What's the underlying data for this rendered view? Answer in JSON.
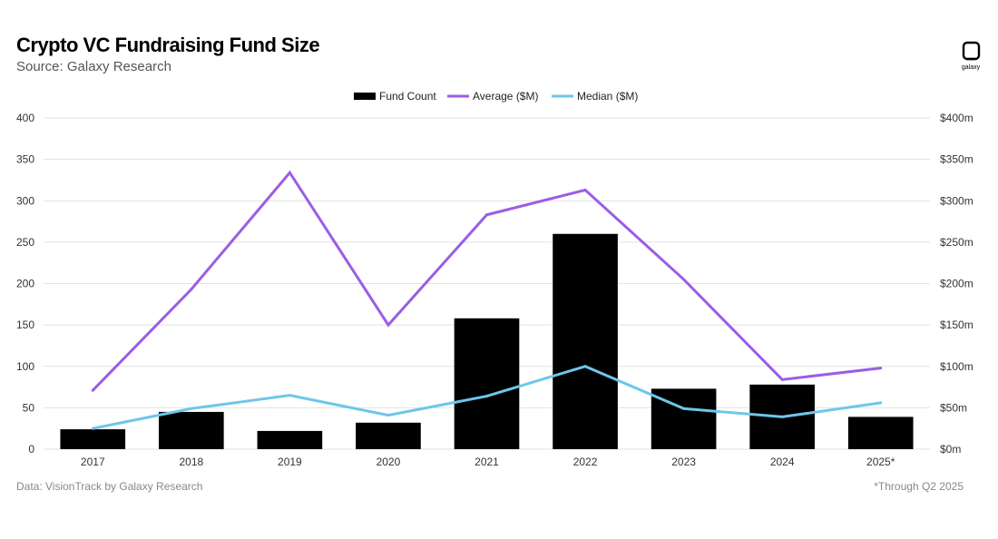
{
  "header": {
    "title": "Crypto VC Fundraising Fund Size",
    "subtitle": "Source: Galaxy Research",
    "logo_text": "galaxy"
  },
  "footer": {
    "left": "Data: VisionTrack by Galaxy Research",
    "right": "*Through Q2 2025"
  },
  "colors": {
    "bars": "#000000",
    "average": "#9b5de5",
    "median": "#6ec6ea",
    "grid": "#e2e2e2"
  },
  "chart_data": {
    "type": "bar",
    "title": "Crypto VC Fundraising Fund Size",
    "categories": [
      "2017",
      "2018",
      "2019",
      "2020",
      "2021",
      "2022",
      "2023",
      "2024",
      "2025*"
    ],
    "series": [
      {
        "name": "Fund Count",
        "type": "bar",
        "axis": "left",
        "values": [
          24,
          45,
          22,
          32,
          158,
          260,
          73,
          78,
          39
        ]
      },
      {
        "name": "Average ($M)",
        "type": "line",
        "axis": "right",
        "values": [
          71,
          193,
          334,
          150,
          283,
          313,
          205,
          84,
          98
        ]
      },
      {
        "name": "Median ($M)",
        "type": "line",
        "axis": "right",
        "values": [
          25,
          49,
          65,
          41,
          64,
          100,
          49,
          39,
          56
        ]
      }
    ],
    "y_left": {
      "min": 0,
      "max": 400,
      "ticks": [
        "0",
        "50",
        "100",
        "150",
        "200",
        "250",
        "300",
        "350",
        "400"
      ]
    },
    "y_right": {
      "min": 0,
      "max": 400,
      "ticks": [
        "$0m",
        "$50m",
        "$100m",
        "$150m",
        "$200m",
        "$250m",
        "$300m",
        "$350m",
        "$400m"
      ]
    },
    "grid": true,
    "legend_position": "top-center"
  }
}
